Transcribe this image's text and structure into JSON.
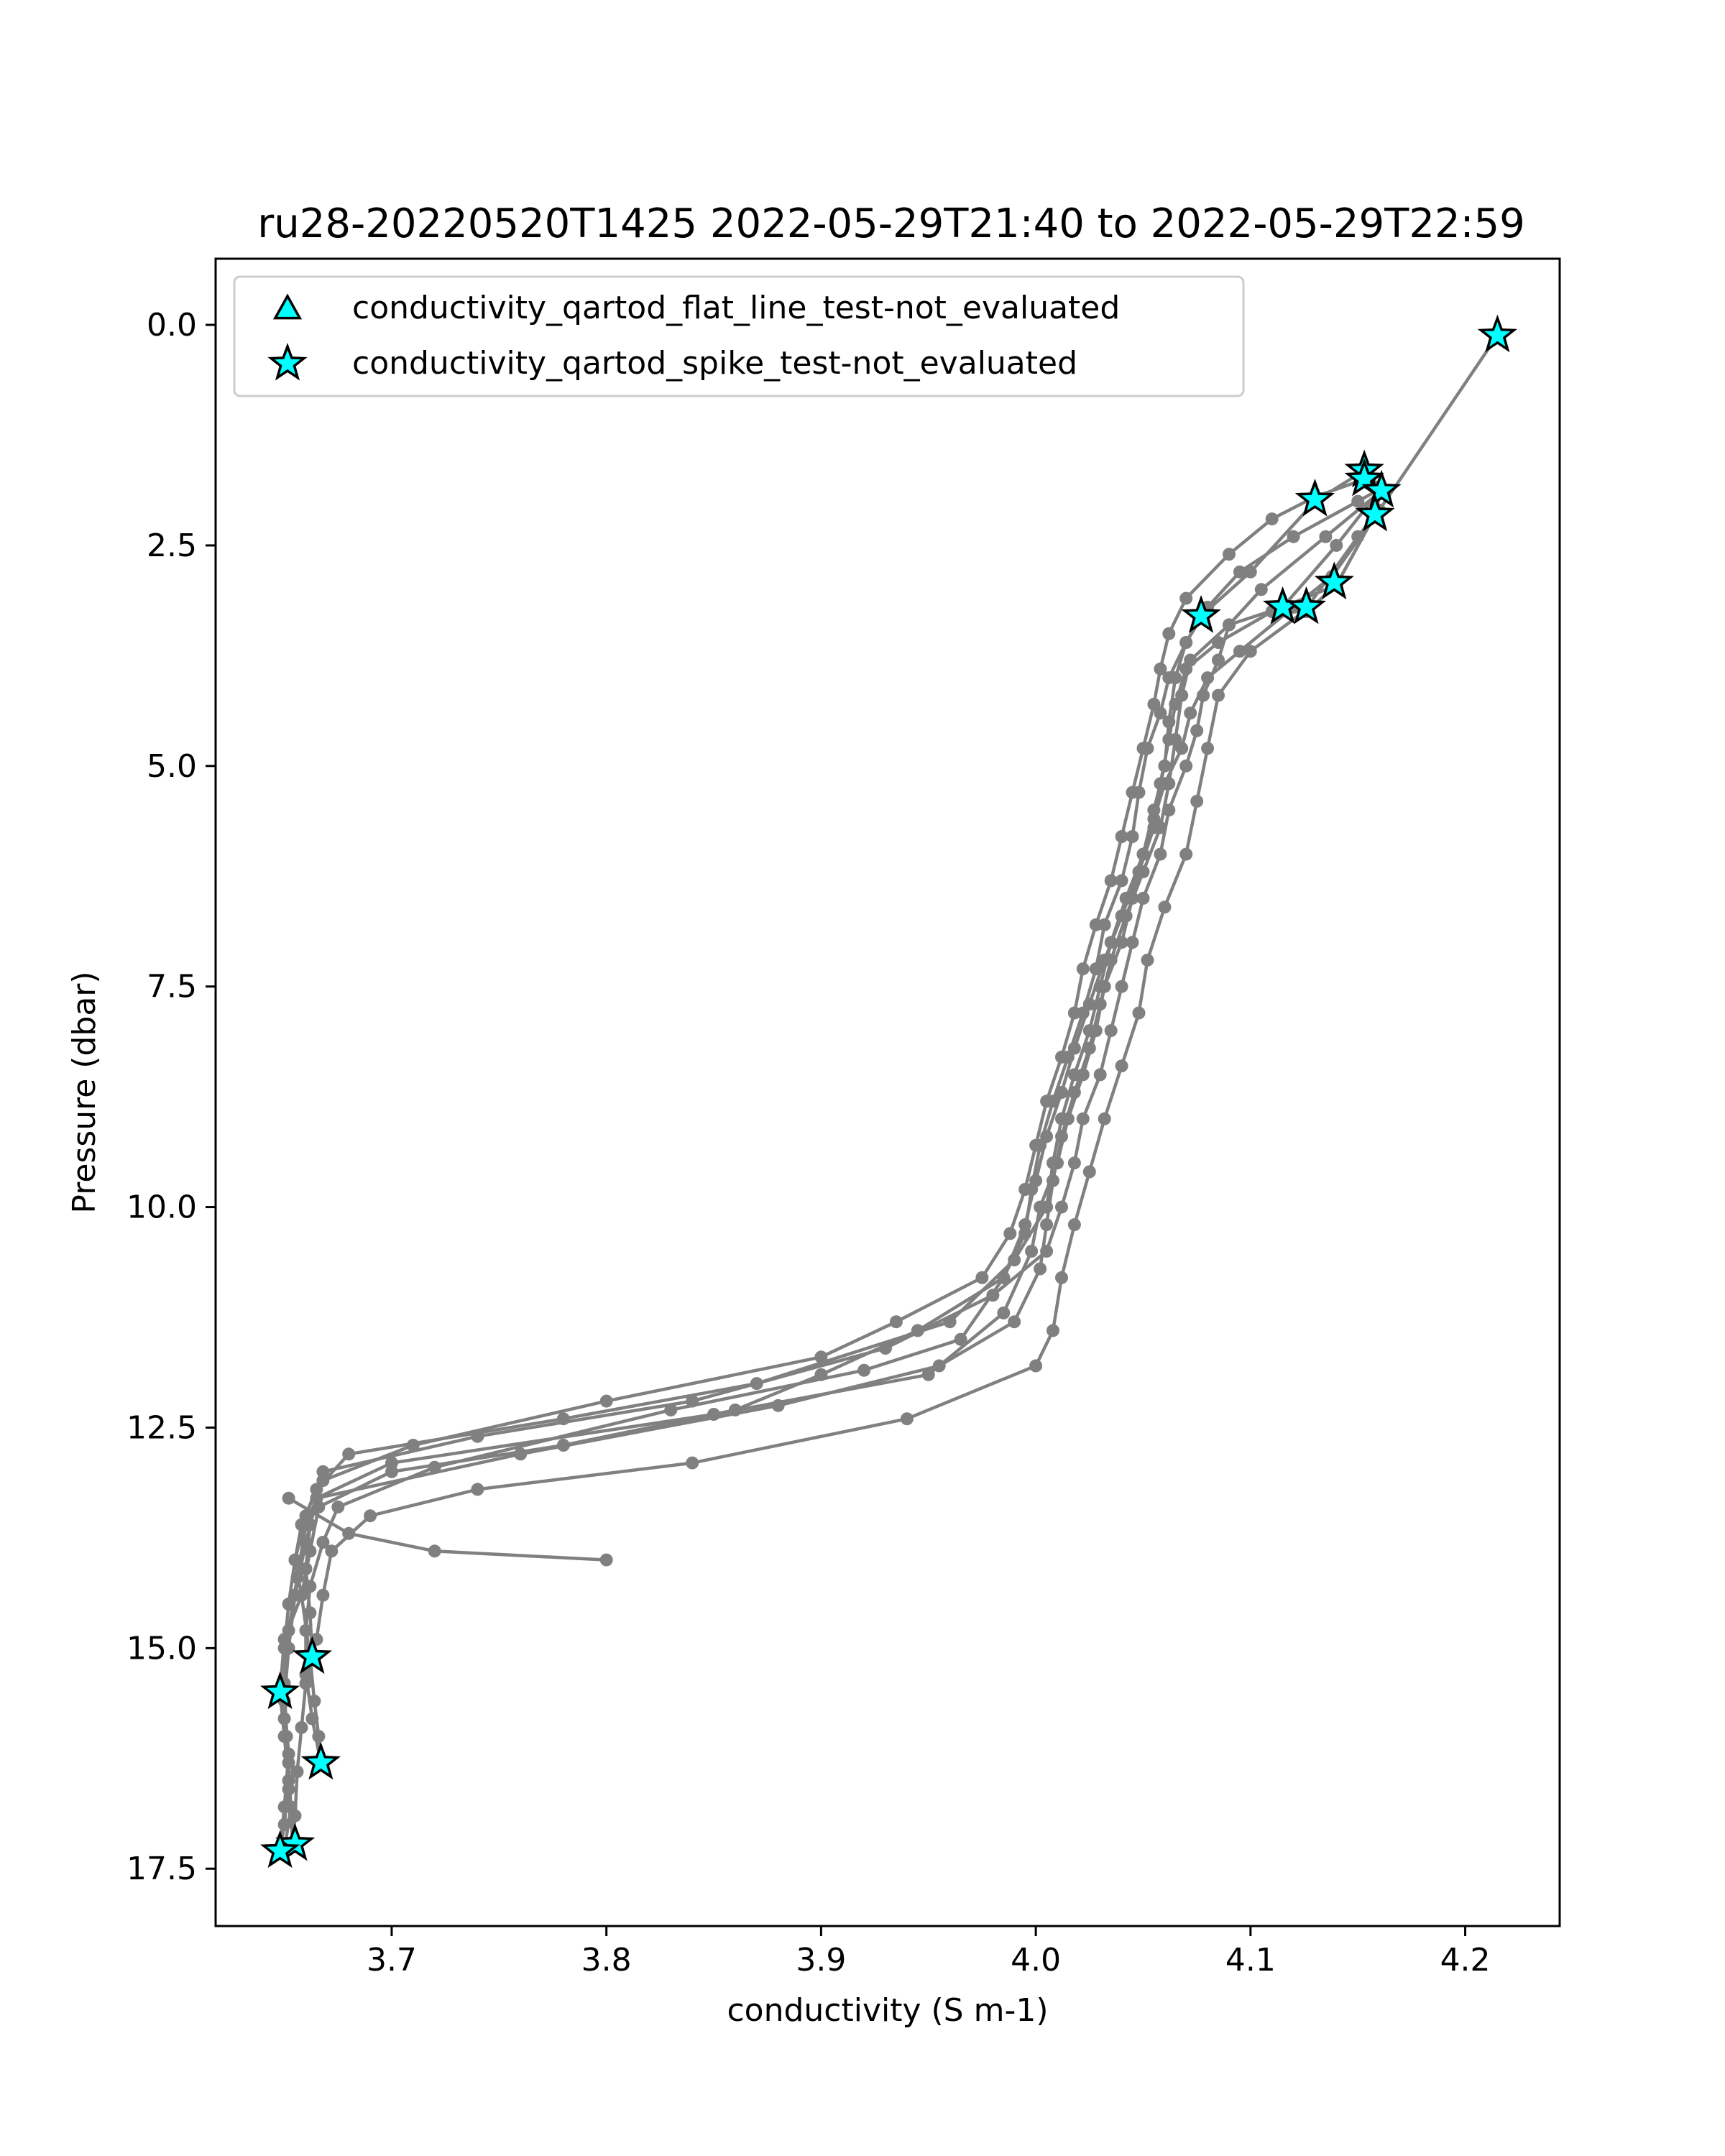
{
  "chart_data": {
    "type": "line",
    "title": "ru28-20220520T1425 2022-05-29T21:40 to 2022-05-29T22:59",
    "xlabel": "conductivity (S m-1)",
    "ylabel": "Pressure (dbar)",
    "xlim": [
      3.618,
      4.244
    ],
    "ylim": [
      18.15,
      -0.75
    ],
    "y_inverted": true,
    "x_ticks": [
      "3.7",
      "3.8",
      "3.9",
      "4.0",
      "4.1",
      "4.2"
    ],
    "y_ticks": [
      "0.0",
      "2.5",
      "5.0",
      "7.5",
      "10.0",
      "12.5",
      "15.0",
      "17.5"
    ],
    "grid": false,
    "legend_position": "upper-left",
    "line_color": "#808080",
    "profiles": [
      [
        [
          4.215,
          0.12
        ],
        [
          4.16,
          2.1
        ],
        [
          4.138,
          2.85
        ],
        [
          4.12,
          3.2
        ],
        [
          4.095,
          3.7
        ],
        [
          4.08,
          4.0
        ],
        [
          4.072,
          4.4
        ],
        [
          4.068,
          4.8
        ],
        [
          4.06,
          5.2
        ],
        [
          4.055,
          5.6
        ],
        [
          4.05,
          6.0
        ],
        [
          4.042,
          6.5
        ],
        [
          4.035,
          7.0
        ],
        [
          4.03,
          7.5
        ],
        [
          4.025,
          8.0
        ],
        [
          4.018,
          8.5
        ],
        [
          4.012,
          9.0
        ],
        [
          4.008,
          9.5
        ],
        [
          4.005,
          10.0
        ],
        [
          3.99,
          10.6
        ],
        [
          3.96,
          11.3
        ],
        [
          3.87,
          12.0
        ],
        [
          3.78,
          12.4
        ],
        [
          3.68,
          12.8
        ],
        [
          3.665,
          13.2
        ],
        [
          3.658,
          13.6
        ],
        [
          3.655,
          14.0
        ],
        [
          3.652,
          14.5
        ],
        [
          3.65,
          15.0
        ],
        [
          3.648,
          15.5
        ],
        [
          3.65,
          16.0
        ],
        [
          3.652,
          16.5
        ],
        [
          3.65,
          17.0
        ],
        [
          3.648,
          17.3
        ]
      ],
      [
        [
          3.648,
          17.3
        ],
        [
          3.65,
          16.8
        ],
        [
          3.652,
          16.2
        ],
        [
          3.65,
          15.6
        ],
        [
          3.652,
          15.0
        ],
        [
          3.655,
          14.4
        ],
        [
          3.66,
          13.8
        ],
        [
          3.665,
          13.3
        ],
        [
          3.7,
          12.9
        ],
        [
          3.85,
          12.35
        ],
        [
          3.95,
          11.9
        ],
        [
          3.985,
          11.2
        ],
        [
          3.998,
          10.5
        ],
        [
          4.002,
          10.0
        ],
        [
          4.01,
          9.5
        ],
        [
          4.015,
          9.0
        ],
        [
          4.022,
          8.5
        ],
        [
          4.028,
          8.0
        ],
        [
          4.032,
          7.5
        ],
        [
          4.04,
          7.0
        ],
        [
          4.045,
          6.5
        ],
        [
          4.05,
          6.0
        ],
        [
          4.055,
          5.5
        ],
        [
          4.06,
          5.0
        ],
        [
          4.062,
          4.5
        ],
        [
          4.065,
          4.0
        ],
        [
          4.07,
          3.6
        ],
        [
          4.077,
          3.3
        ],
        [
          4.1,
          2.8
        ],
        [
          4.13,
          2.0
        ],
        [
          4.153,
          1.65
        ]
      ],
      [
        [
          4.153,
          1.65
        ],
        [
          4.16,
          1.9
        ],
        [
          4.135,
          2.4
        ],
        [
          4.105,
          3.0
        ],
        [
          4.09,
          3.4
        ],
        [
          4.085,
          3.8
        ],
        [
          4.078,
          4.2
        ],
        [
          4.075,
          4.6
        ],
        [
          4.07,
          5.0
        ],
        [
          4.062,
          5.5
        ],
        [
          4.058,
          6.0
        ],
        [
          4.05,
          6.5
        ],
        [
          4.045,
          7.0
        ],
        [
          4.04,
          7.5
        ],
        [
          4.035,
          8.0
        ],
        [
          4.03,
          8.5
        ],
        [
          4.022,
          9.0
        ],
        [
          4.018,
          9.5
        ],
        [
          4.012,
          10.0
        ],
        [
          4.005,
          10.5
        ],
        [
          3.98,
          11.0
        ],
        [
          3.93,
          11.6
        ],
        [
          3.84,
          12.2
        ],
        [
          3.74,
          12.6
        ],
        [
          3.668,
          13.0
        ],
        [
          3.66,
          13.5
        ],
        [
          3.655,
          14.0
        ],
        [
          3.658,
          14.4
        ],
        [
          3.662,
          15.1
        ],
        [
          3.664,
          15.6
        ],
        [
          3.666,
          16.0
        ],
        [
          3.667,
          16.3
        ]
      ],
      [
        [
          3.667,
          16.3
        ],
        [
          3.663,
          15.8
        ],
        [
          3.66,
          15.3
        ],
        [
          3.66,
          14.8
        ],
        [
          3.662,
          14.3
        ],
        [
          3.668,
          13.8
        ],
        [
          3.675,
          13.4
        ],
        [
          3.72,
          12.95
        ],
        [
          3.83,
          12.3
        ],
        [
          3.92,
          11.85
        ],
        [
          3.965,
          11.5
        ],
        [
          3.985,
          10.8
        ],
        [
          3.995,
          10.2
        ],
        [
          4.0,
          9.7
        ],
        [
          4.005,
          9.2
        ],
        [
          4.012,
          8.7
        ],
        [
          4.018,
          8.2
        ],
        [
          4.025,
          7.7
        ],
        [
          4.032,
          7.2
        ],
        [
          4.04,
          6.7
        ],
        [
          4.048,
          6.2
        ],
        [
          4.055,
          5.7
        ],
        [
          4.058,
          5.2
        ],
        [
          4.062,
          4.7
        ],
        [
          4.065,
          4.3
        ],
        [
          4.07,
          3.9
        ],
        [
          4.085,
          3.6
        ],
        [
          4.11,
          3.25
        ],
        [
          4.14,
          2.95
        ],
        [
          4.158,
          2.15
        ]
      ],
      [
        [
          4.158,
          2.15
        ],
        [
          4.15,
          2.4
        ],
        [
          4.125,
          3.25
        ],
        [
          4.1,
          3.7
        ],
        [
          4.085,
          4.2
        ],
        [
          4.08,
          4.8
        ],
        [
          4.075,
          5.4
        ],
        [
          4.07,
          6.0
        ],
        [
          4.06,
          6.6
        ],
        [
          4.052,
          7.2
        ],
        [
          4.048,
          7.8
        ],
        [
          4.04,
          8.4
        ],
        [
          4.032,
          9.0
        ],
        [
          4.025,
          9.6
        ],
        [
          4.018,
          10.2
        ],
        [
          4.012,
          10.8
        ],
        [
          4.008,
          11.4
        ],
        [
          4.0,
          11.8
        ],
        [
          3.94,
          12.4
        ],
        [
          3.84,
          12.9
        ],
        [
          3.74,
          13.2
        ],
        [
          3.69,
          13.5
        ],
        [
          3.672,
          13.9
        ],
        [
          3.668,
          14.4
        ],
        [
          3.665,
          14.9
        ],
        [
          3.66,
          15.4
        ],
        [
          3.658,
          15.9
        ],
        [
          3.656,
          16.4
        ],
        [
          3.655,
          16.9
        ],
        [
          3.654,
          17.2
        ]
      ],
      [
        [
          3.654,
          17.2
        ],
        [
          3.652,
          16.6
        ],
        [
          3.651,
          16.0
        ],
        [
          3.65,
          15.4
        ],
        [
          3.652,
          14.8
        ],
        [
          3.656,
          14.2
        ],
        [
          3.66,
          13.6
        ],
        [
          3.665,
          13.3
        ],
        [
          3.76,
          12.8
        ],
        [
          3.88,
          12.25
        ],
        [
          3.955,
          11.8
        ],
        [
          3.99,
          11.3
        ],
        [
          4.002,
          10.7
        ],
        [
          4.005,
          10.2
        ],
        [
          4.008,
          9.7
        ],
        [
          4.012,
          9.2
        ],
        [
          4.018,
          8.7
        ],
        [
          4.025,
          8.2
        ],
        [
          4.03,
          7.7
        ],
        [
          4.035,
          7.2
        ],
        [
          4.042,
          6.7
        ],
        [
          4.05,
          6.2
        ],
        [
          4.058,
          5.7
        ],
        [
          4.062,
          5.2
        ],
        [
          4.065,
          4.7
        ],
        [
          4.068,
          4.2
        ],
        [
          4.072,
          3.8
        ],
        [
          4.09,
          3.4
        ],
        [
          4.115,
          3.2
        ],
        [
          4.14,
          2.5
        ],
        [
          4.161,
          1.85
        ]
      ],
      [
        [
          4.161,
          1.85
        ],
        [
          4.15,
          2.0
        ],
        [
          4.12,
          2.4
        ],
        [
          4.095,
          2.8
        ],
        [
          4.08,
          3.2
        ],
        [
          4.07,
          3.6
        ],
        [
          4.062,
          4.0
        ],
        [
          4.058,
          4.4
        ],
        [
          4.052,
          4.8
        ],
        [
          4.048,
          5.3
        ],
        [
          4.045,
          5.8
        ],
        [
          4.04,
          6.3
        ],
        [
          4.032,
          6.8
        ],
        [
          4.028,
          7.3
        ],
        [
          4.022,
          7.8
        ],
        [
          4.015,
          8.3
        ],
        [
          4.008,
          8.8
        ],
        [
          4.002,
          9.3
        ],
        [
          3.998,
          9.8
        ],
        [
          3.995,
          10.3
        ],
        [
          3.985,
          10.8
        ],
        [
          3.945,
          11.4
        ],
        [
          3.9,
          11.9
        ],
        [
          3.86,
          12.3
        ],
        [
          3.78,
          12.7
        ],
        [
          3.7,
          13.0
        ],
        [
          3.666,
          13.4
        ],
        [
          3.662,
          13.9
        ],
        [
          3.658,
          14.4
        ],
        [
          3.65,
          14.9
        ],
        [
          3.648,
          15.5
        ]
      ],
      [
        [
          3.648,
          15.5
        ],
        [
          3.65,
          15.8
        ],
        [
          3.652,
          16.3
        ],
        [
          3.653,
          16.8
        ],
        [
          3.65,
          17.3
        ]
      ],
      [
        [
          4.153,
          1.75
        ],
        [
          4.13,
          1.95
        ],
        [
          4.11,
          2.2
        ],
        [
          4.09,
          2.6
        ],
        [
          4.07,
          3.1
        ],
        [
          4.062,
          3.5
        ],
        [
          4.058,
          3.9
        ],
        [
          4.055,
          4.3
        ],
        [
          4.05,
          4.8
        ],
        [
          4.045,
          5.3
        ],
        [
          4.04,
          5.8
        ],
        [
          4.035,
          6.3
        ],
        [
          4.028,
          6.8
        ],
        [
          4.022,
          7.3
        ],
        [
          4.018,
          7.8
        ],
        [
          4.012,
          8.3
        ],
        [
          4.005,
          8.8
        ],
        [
          4.0,
          9.3
        ],
        [
          3.995,
          9.8
        ],
        [
          3.988,
          10.3
        ],
        [
          3.975,
          10.8
        ],
        [
          3.935,
          11.3
        ],
        [
          3.9,
          11.7
        ],
        [
          3.8,
          12.2
        ],
        [
          3.71,
          12.7
        ],
        [
          3.668,
          13.1
        ],
        [
          3.662,
          13.6
        ],
        [
          3.66,
          14.1
        ],
        [
          3.662,
          14.6
        ],
        [
          3.663,
          15.1
        ]
      ],
      [
        [
          3.652,
          13.3
        ],
        [
          3.68,
          13.7
        ],
        [
          3.72,
          13.9
        ],
        [
          3.8,
          14.0
        ]
      ],
      [
        [
          4.153,
          1.65
        ],
        [
          4.161,
          1.85
        ],
        [
          4.158,
          2.15
        ],
        [
          4.14,
          2.95
        ],
        [
          4.126,
          3.25
        ],
        [
          4.115,
          3.2
        ]
      ]
    ],
    "markers": [
      {
        "kind": "star",
        "x": 4.215,
        "y": 0.12
      },
      {
        "kind": "star",
        "x": 4.153,
        "y": 1.65
      },
      {
        "kind": "star",
        "x": 4.153,
        "y": 1.75
      },
      {
        "kind": "star",
        "x": 4.13,
        "y": 1.98
      },
      {
        "kind": "star",
        "x": 4.161,
        "y": 1.88
      },
      {
        "kind": "star",
        "x": 4.158,
        "y": 2.15
      },
      {
        "kind": "star",
        "x": 4.139,
        "y": 2.92
      },
      {
        "kind": "star",
        "x": 4.115,
        "y": 3.2
      },
      {
        "kind": "star",
        "x": 4.126,
        "y": 3.2
      },
      {
        "kind": "star",
        "x": 4.077,
        "y": 3.3
      },
      {
        "kind": "star",
        "x": 3.663,
        "y": 15.1
      },
      {
        "kind": "star",
        "x": 3.648,
        "y": 15.5
      },
      {
        "kind": "star",
        "x": 3.667,
        "y": 16.3
      },
      {
        "kind": "star",
        "x": 3.655,
        "y": 17.22
      },
      {
        "kind": "star",
        "x": 3.648,
        "y": 17.3
      }
    ],
    "legend": [
      {
        "label": "conductivity_qartod_flat_line_test-not_evaluated",
        "marker": "triangle",
        "color": "#00ffff"
      },
      {
        "label": "conductivity_qartod_spike_test-not_evaluated",
        "marker": "star",
        "color": "#00ffff"
      }
    ]
  }
}
